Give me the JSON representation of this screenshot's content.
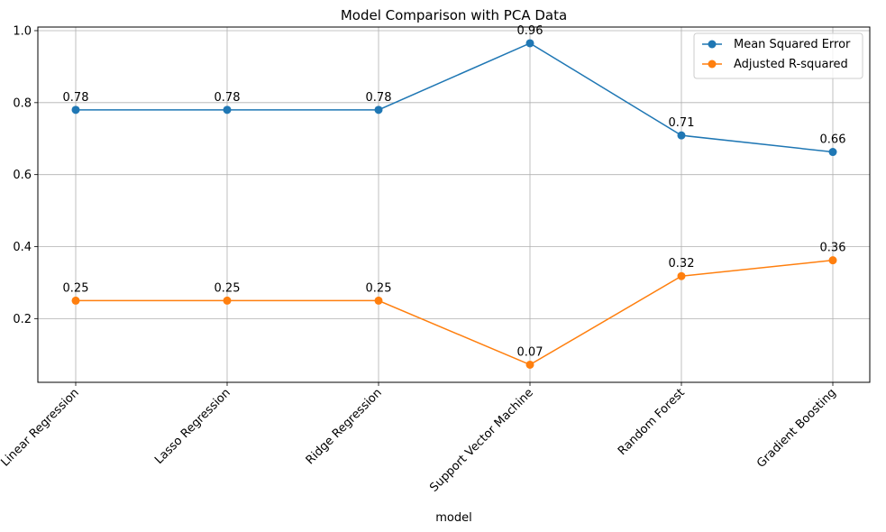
{
  "chart_data": {
    "type": "line",
    "title": "Model Comparison with PCA Data",
    "xlabel": "model",
    "ylabel": "",
    "categories": [
      "Linear Regression",
      "Lasso Regression",
      "Ridge Regression",
      "Support Vector Machine",
      "Random Forest",
      "Gradient Boosting"
    ],
    "series": [
      {
        "name": "Mean Squared Error",
        "values": [
          0.78,
          0.78,
          0.78,
          0.965,
          0.709,
          0.663
        ],
        "labels": [
          "0.78",
          "0.78",
          "0.78",
          "0.96",
          "0.71",
          "0.66"
        ],
        "color": "#1f77b4"
      },
      {
        "name": "Adjusted R-squared",
        "values": [
          0.25,
          0.25,
          0.25,
          0.072,
          0.318,
          0.362
        ],
        "labels": [
          "0.25",
          "0.25",
          "0.25",
          "0.07",
          "0.32",
          "0.36"
        ],
        "color": "#ff7f0e"
      }
    ],
    "yticks": [
      0.2,
      0.4,
      0.6,
      0.8,
      1.0
    ],
    "ytick_labels": [
      "0.2",
      "0.4",
      "0.6",
      "0.8",
      "1.0"
    ],
    "ylim": [
      0.023,
      1.01
    ],
    "grid": true,
    "legend_position": "top-right",
    "grid_color": "#b0b0b0"
  }
}
